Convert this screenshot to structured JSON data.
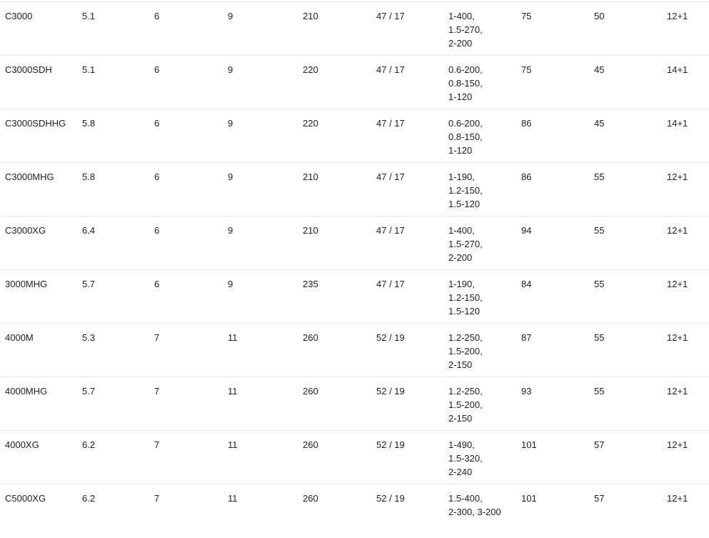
{
  "colors": {
    "background": "#ffffff",
    "text": "#212121",
    "divider": "#e7e7e7"
  },
  "table": {
    "rows": [
      {
        "cells": [
          "C3000",
          "5.1",
          "6",
          "9",
          "210",
          "47 / 17",
          [
            "1-400,",
            "1.5-270,",
            "2-200"
          ],
          "75",
          "50",
          "12+1"
        ]
      },
      {
        "cells": [
          "C3000SDH",
          "5.1",
          "6",
          "9",
          "220",
          "47 / 17",
          [
            "0.6-200,",
            "0.8-150,",
            "1-120"
          ],
          "75",
          "45",
          "14+1"
        ]
      },
      {
        "cells": [
          "C3000SDHHG",
          "5.8",
          "6",
          "9",
          "220",
          "47 / 17",
          [
            "0.6-200,",
            "0.8-150,",
            "1-120"
          ],
          "86",
          "45",
          "14+1"
        ]
      },
      {
        "cells": [
          "C3000MHG",
          "5.8",
          "6",
          "9",
          "210",
          "47 / 17",
          [
            "1-190,",
            "1.2-150,",
            "1.5-120"
          ],
          "86",
          "55",
          "12+1"
        ]
      },
      {
        "cells": [
          "C3000XG",
          "6.4",
          "6",
          "9",
          "210",
          "47 / 17",
          [
            "1-400,",
            "1.5-270,",
            "2-200"
          ],
          "94",
          "55",
          "12+1"
        ]
      },
      {
        "cells": [
          "3000MHG",
          "5.7",
          "6",
          "9",
          "235",
          "47 / 17",
          [
            "1-190,",
            "1.2-150,",
            "1.5-120"
          ],
          "84",
          "55",
          "12+1"
        ]
      },
      {
        "cells": [
          "4000M",
          "5.3",
          "7",
          "11",
          "260",
          "52 / 19",
          [
            "1.2-250,",
            "1.5-200,",
            "2-150"
          ],
          "87",
          "55",
          "12+1"
        ]
      },
      {
        "cells": [
          "4000MHG",
          "5.7",
          "7",
          "11",
          "260",
          "52 / 19",
          [
            "1.2-250,",
            "1.5-200,",
            "2-150"
          ],
          "93",
          "55",
          "12+1"
        ]
      },
      {
        "cells": [
          "4000XG",
          "6.2",
          "7",
          "11",
          "260",
          "52 / 19",
          [
            "1-490,",
            "1.5-320,",
            "2-240"
          ],
          "101",
          "57",
          "12+1"
        ]
      },
      {
        "cells": [
          "C5000XG",
          "6.2",
          "7",
          "11",
          "260",
          "52 / 19",
          [
            "1.5-400,",
            "2-300, 3-200"
          ],
          "101",
          "57",
          "12+1"
        ]
      }
    ]
  }
}
